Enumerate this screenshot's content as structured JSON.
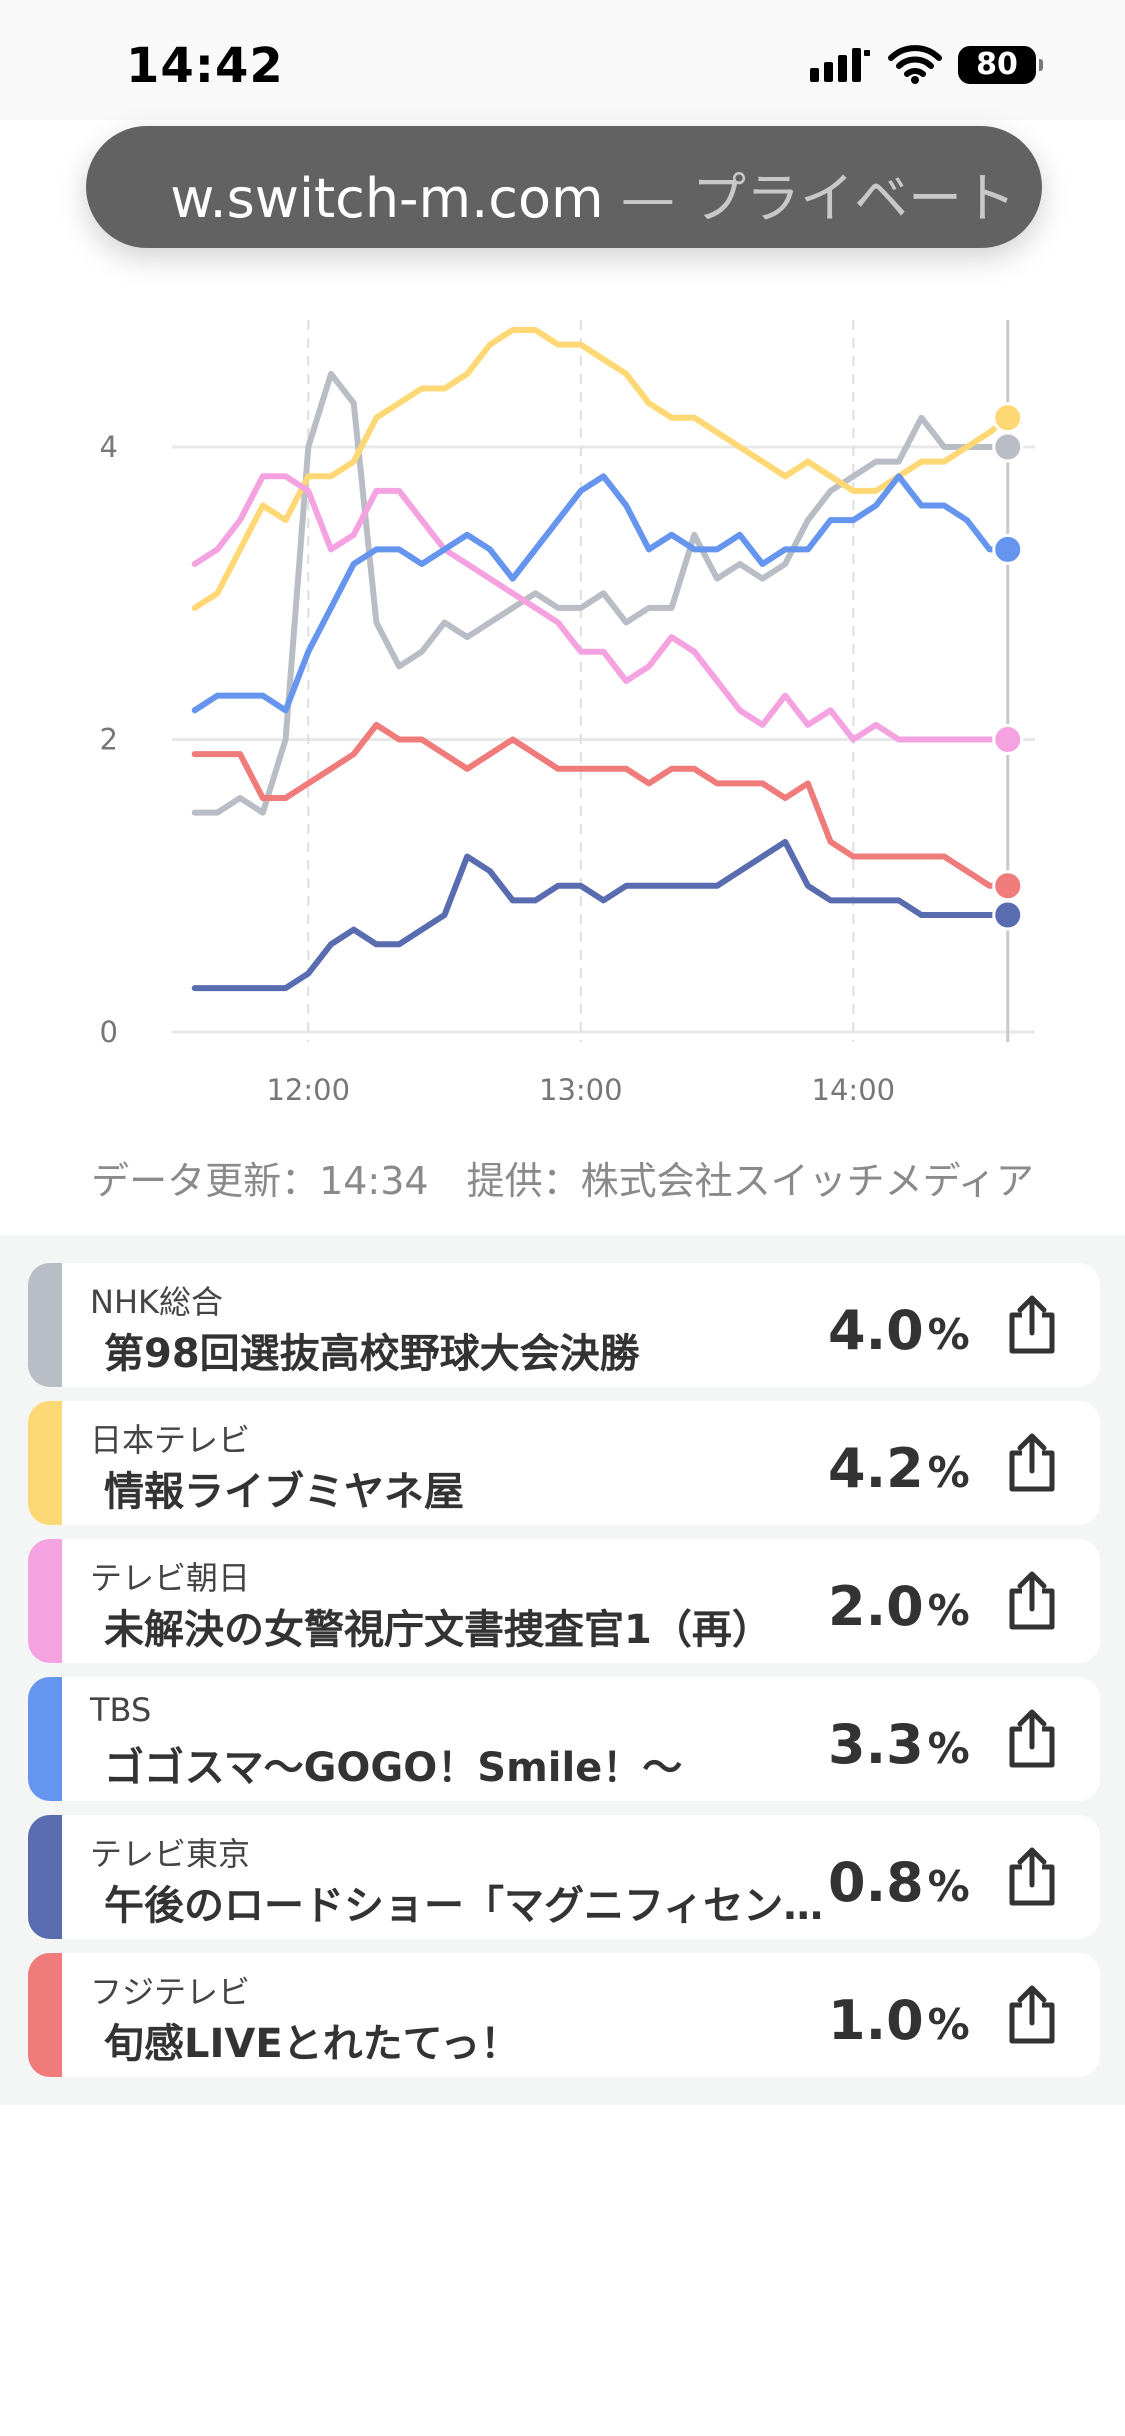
{
  "status_bar": {
    "time": "14:42",
    "battery": "80"
  },
  "browser": {
    "url_host": "w.switch-m.com",
    "url_suffix": " — プライベート"
  },
  "chart_data": {
    "type": "line",
    "x_ticks": [
      "12:00",
      "13:00",
      "14:00"
    ],
    "y_ticks": [
      "0",
      "2",
      "4"
    ],
    "ylim": [
      0,
      4.8
    ],
    "grid": true,
    "x": [
      "11:35",
      "11:40",
      "11:45",
      "11:50",
      "11:55",
      "12:00",
      "12:05",
      "12:10",
      "12:15",
      "12:20",
      "12:25",
      "12:30",
      "12:35",
      "12:40",
      "12:45",
      "12:50",
      "12:55",
      "13:00",
      "13:05",
      "13:10",
      "13:15",
      "13:20",
      "13:25",
      "13:30",
      "13:35",
      "13:40",
      "13:45",
      "13:50",
      "13:55",
      "14:00",
      "14:05",
      "14:10",
      "14:15",
      "14:20",
      "14:25",
      "14:30",
      "14:34"
    ],
    "series": [
      {
        "name": "NHK総合",
        "color": "#b9bdc5",
        "values": [
          1.5,
          1.5,
          1.6,
          1.5,
          2.0,
          4.0,
          4.5,
          4.3,
          2.8,
          2.5,
          2.6,
          2.8,
          2.7,
          2.8,
          2.9,
          3.0,
          2.9,
          2.9,
          3.0,
          2.8,
          2.9,
          2.9,
          3.4,
          3.1,
          3.2,
          3.1,
          3.2,
          3.5,
          3.7,
          3.8,
          3.9,
          3.9,
          4.2,
          4.0,
          4.0,
          4.0,
          4.0
        ]
      },
      {
        "name": "日本テレビ",
        "color": "#fdd874",
        "values": [
          2.9,
          3.0,
          3.3,
          3.6,
          3.5,
          3.8,
          3.8,
          3.9,
          4.2,
          4.3,
          4.4,
          4.4,
          4.5,
          4.7,
          4.8,
          4.8,
          4.7,
          4.7,
          4.6,
          4.5,
          4.3,
          4.2,
          4.2,
          4.1,
          4.0,
          3.9,
          3.8,
          3.9,
          3.8,
          3.7,
          3.7,
          3.8,
          3.9,
          3.9,
          4.0,
          4.1,
          4.2
        ]
      },
      {
        "name": "テレビ朝日",
        "color": "#f5a3e0",
        "values": [
          3.2,
          3.3,
          3.5,
          3.8,
          3.8,
          3.7,
          3.3,
          3.4,
          3.7,
          3.7,
          3.5,
          3.3,
          3.2,
          3.1,
          3.0,
          2.9,
          2.8,
          2.6,
          2.6,
          2.4,
          2.5,
          2.7,
          2.6,
          2.4,
          2.2,
          2.1,
          2.3,
          2.1,
          2.2,
          2.0,
          2.1,
          2.0,
          2.0,
          2.0,
          2.0,
          2.0,
          2.0
        ]
      },
      {
        "name": "TBS",
        "color": "#6595ef",
        "values": [
          2.2,
          2.3,
          2.3,
          2.3,
          2.2,
          2.6,
          2.9,
          3.2,
          3.3,
          3.3,
          3.2,
          3.3,
          3.4,
          3.3,
          3.1,
          3.3,
          3.5,
          3.7,
          3.8,
          3.6,
          3.3,
          3.4,
          3.3,
          3.3,
          3.4,
          3.2,
          3.3,
          3.3,
          3.5,
          3.5,
          3.6,
          3.8,
          3.6,
          3.6,
          3.5,
          3.3,
          3.3
        ]
      },
      {
        "name": "テレビ東京",
        "color": "#5a6cb0",
        "values": [
          0.3,
          0.3,
          0.3,
          0.3,
          0.3,
          0.4,
          0.6,
          0.7,
          0.6,
          0.6,
          0.7,
          0.8,
          1.2,
          1.1,
          0.9,
          0.9,
          1.0,
          1.0,
          0.9,
          1.0,
          1.0,
          1.0,
          1.0,
          1.0,
          1.1,
          1.2,
          1.3,
          1.0,
          0.9,
          0.9,
          0.9,
          0.9,
          0.8,
          0.8,
          0.8,
          0.8,
          0.8
        ]
      },
      {
        "name": "フジテレビ",
        "color": "#f07b7b",
        "values": [
          1.9,
          1.9,
          1.9,
          1.6,
          1.6,
          1.7,
          1.8,
          1.9,
          2.1,
          2.0,
          2.0,
          1.9,
          1.8,
          1.9,
          2.0,
          1.9,
          1.8,
          1.8,
          1.8,
          1.8,
          1.7,
          1.8,
          1.8,
          1.7,
          1.7,
          1.7,
          1.6,
          1.7,
          1.3,
          1.2,
          1.2,
          1.2,
          1.2,
          1.2,
          1.1,
          1.0,
          1.0
        ]
      }
    ]
  },
  "footer_note": "データ更新：14:34　提供：株式会社スイッチメディア",
  "cards": [
    {
      "channel": "NHK総合",
      "program": "第98回選抜高校野球大会決勝",
      "value": "4.0",
      "unit": "%",
      "color": "#b9bdc5"
    },
    {
      "channel": "日本テレビ",
      "program": "情報ライブミヤネ屋",
      "value": "4.2",
      "unit": "%",
      "color": "#fdd874"
    },
    {
      "channel": "テレビ朝日",
      "program": "未解決の女警視庁文書捜査官1（再）",
      "value": "2.0",
      "unit": "%",
      "color": "#f5a3e0"
    },
    {
      "channel": "TBS",
      "program": "ゴゴスマ～GOGO！Smile！～",
      "value": "3.3",
      "unit": "%",
      "color": "#6595ef"
    },
    {
      "channel": "テレビ東京",
      "program": "午後のロードショー「マグニフィセント・セブン」",
      "value": "0.8",
      "unit": "%",
      "color": "#5a6cb0"
    },
    {
      "channel": "フジテレビ",
      "program": "旬感LIVEとれたてっ！",
      "value": "1.0",
      "unit": "%",
      "color": "#f07b7b"
    }
  ]
}
